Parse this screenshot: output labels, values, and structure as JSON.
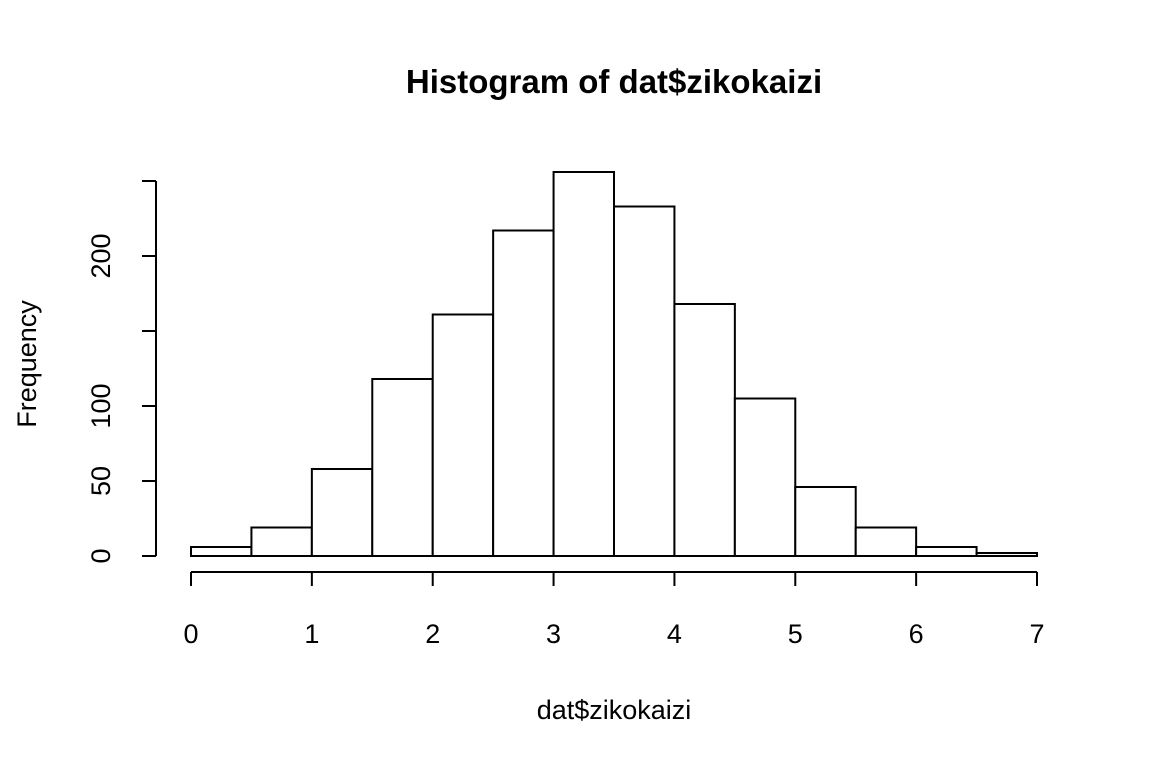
{
  "chart_data": {
    "type": "bar",
    "title": "Histogram of dat$zikokaizi",
    "xlabel": "dat$zikokaizi",
    "ylabel": "Frequency",
    "bin_edges": [
      0,
      0.5,
      1,
      1.5,
      2,
      2.5,
      3,
      3.5,
      4,
      4.5,
      5,
      5.5,
      6,
      6.5,
      7
    ],
    "values": [
      6,
      19,
      58,
      118,
      161,
      217,
      256,
      233,
      168,
      105,
      46,
      19,
      6,
      2
    ],
    "xlim": [
      0,
      7
    ],
    "ylim": [
      0,
      250
    ],
    "x_ticks": [
      "0",
      "1",
      "2",
      "3",
      "4",
      "5",
      "6",
      "7"
    ],
    "y_ticks": [
      0,
      50,
      100,
      150,
      200,
      250
    ],
    "y_tick_labels": [
      "0",
      "50",
      "100",
      "",
      "200",
      ""
    ],
    "grid": false,
    "legend": "none"
  }
}
